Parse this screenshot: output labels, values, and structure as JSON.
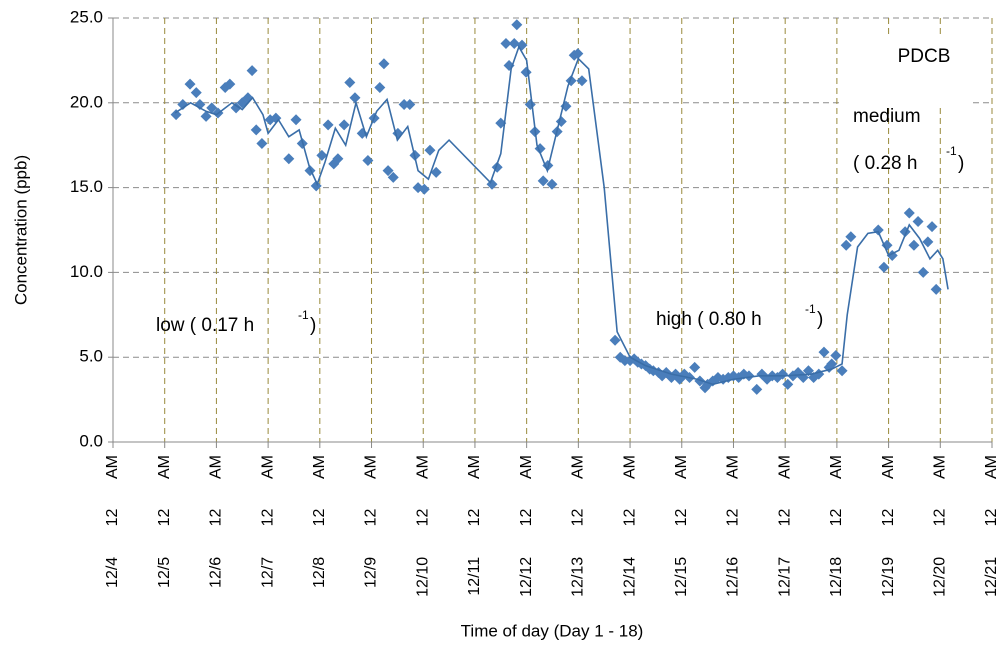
{
  "chart_data": {
    "type": "scatter",
    "ylabel": "Concentration (ppb)",
    "xlabel": "Time of day (Day 1 - 18)",
    "annotations": [
      "PDCB",
      "medium",
      "( 0.28 h",
      "-1",
      ")",
      "low ( 0.17 h",
      "-1",
      ")",
      "high ( 0.80 h",
      "-1",
      ")"
    ],
    "xlim": [
      4,
      21
    ],
    "xticks": [
      {
        "value": 4,
        "label": "12/4 12 AM"
      },
      {
        "value": 5,
        "label": "12/5 12 AM"
      },
      {
        "value": 6,
        "label": "12/6 12 AM"
      },
      {
        "value": 7,
        "label": "12/7 12 AM"
      },
      {
        "value": 8,
        "label": "12/8 12 AM"
      },
      {
        "value": 9,
        "label": "12/9 12 AM"
      },
      {
        "value": 10,
        "label": "12/10 12 AM"
      },
      {
        "value": 11,
        "label": "12/11 12 AM"
      },
      {
        "value": 12,
        "label": "12/12 12 AM"
      },
      {
        "value": 13,
        "label": "12/13 12 AM"
      },
      {
        "value": 14,
        "label": "12/14 12 AM"
      },
      {
        "value": 15,
        "label": "12/15 12 AM"
      },
      {
        "value": 16,
        "label": "12/16 12 AM"
      },
      {
        "value": 17,
        "label": "12/17 12 AM"
      },
      {
        "value": 18,
        "label": "12/18 12 AM"
      },
      {
        "value": 19,
        "label": "12/19 12 AM"
      },
      {
        "value": 20,
        "label": "12/20 12 AM"
      },
      {
        "value": 21,
        "label": "12/21 12 AM"
      }
    ],
    "ylim": [
      0,
      25
    ],
    "yticks": [
      {
        "value": 0,
        "label": "0.0"
      },
      {
        "value": 5,
        "label": "5.0"
      },
      {
        "value": 10,
        "label": "10.0"
      },
      {
        "value": 15,
        "label": "15.0"
      },
      {
        "value": 20,
        "label": "20.0"
      },
      {
        "value": 25,
        "label": "25.0"
      }
    ],
    "grid": true,
    "series": [
      {
        "type": "scatter",
        "color": "#4a7ebb",
        "x": [
          5.22,
          5.35,
          5.49,
          5.61,
          5.68,
          5.8,
          5.91,
          6.03,
          6.17,
          6.26,
          6.38,
          6.5,
          6.61,
          6.69,
          6.77,
          6.88,
          7.04,
          7.15,
          7.4,
          7.54,
          7.66,
          7.81,
          7.93,
          8.04,
          8.16,
          8.27,
          8.35,
          8.47,
          8.58,
          8.68,
          8.82,
          8.93,
          9.05,
          9.16,
          9.24,
          9.32,
          9.42,
          9.51,
          9.63,
          9.74,
          9.84,
          9.9,
          10.02,
          10.13,
          10.25,
          11.33,
          11.43,
          11.5,
          11.6,
          11.66,
          11.76,
          11.81,
          11.91,
          11.99,
          12.07,
          12.16,
          12.26,
          12.32,
          12.41,
          12.49,
          12.59,
          12.67,
          12.76,
          12.86,
          12.92,
          12.99,
          13.07,
          13.71,
          13.81,
          13.9,
          14.0,
          14.08,
          14.15,
          14.22,
          14.3,
          14.38,
          14.45,
          14.55,
          14.62,
          14.7,
          14.8,
          14.88,
          14.96,
          15.05,
          15.15,
          15.25,
          15.35,
          15.45,
          15.5,
          15.6,
          15.7,
          15.8,
          15.9,
          16.0,
          16.1,
          16.2,
          16.3,
          16.45,
          16.55,
          16.65,
          16.75,
          16.85,
          16.95,
          17.05,
          17.15,
          17.25,
          17.35,
          17.45,
          17.55,
          17.65,
          17.75,
          17.85,
          17.9,
          17.98,
          18.1,
          18.18,
          18.27,
          18.8,
          18.91,
          18.97,
          19.07,
          19.32,
          19.4,
          19.49,
          19.57,
          19.67,
          19.76,
          19.84,
          19.92
        ],
        "values": [
          19.3,
          19.9,
          21.1,
          20.6,
          19.9,
          19.2,
          19.7,
          19.4,
          20.9,
          21.1,
          19.7,
          20.0,
          20.3,
          21.9,
          18.4,
          17.6,
          19.0,
          19.1,
          16.7,
          19.0,
          17.6,
          16.0,
          15.1,
          16.9,
          18.7,
          16.4,
          16.7,
          18.7,
          21.2,
          20.3,
          18.2,
          16.6,
          19.1,
          20.9,
          22.3,
          16.0,
          15.6,
          18.2,
          19.9,
          19.9,
          16.9,
          15.0,
          14.9,
          17.2,
          15.9,
          15.2,
          16.2,
          18.8,
          23.5,
          22.2,
          23.5,
          24.6,
          23.4,
          21.8,
          19.9,
          18.3,
          17.3,
          15.4,
          16.3,
          15.2,
          18.3,
          18.9,
          19.8,
          21.3,
          22.8,
          22.9,
          21.3,
          6.0,
          5.0,
          4.8,
          4.8,
          4.9,
          4.7,
          4.6,
          4.5,
          4.3,
          4.2,
          4.1,
          3.9,
          4.1,
          3.8,
          4.0,
          3.7,
          4.0,
          3.8,
          4.4,
          3.6,
          3.2,
          3.4,
          3.6,
          3.8,
          3.7,
          3.8,
          3.9,
          3.8,
          4.0,
          3.9,
          3.1,
          4.0,
          3.7,
          3.9,
          3.8,
          4.0,
          3.4,
          3.9,
          4.1,
          3.8,
          4.2,
          3.8,
          4.0,
          5.3,
          4.4,
          4.6,
          5.1,
          4.2,
          11.6,
          12.1,
          12.5,
          10.3,
          11.6,
          11.0,
          12.4,
          13.5,
          11.6,
          13.0,
          10.0,
          11.8,
          12.7,
          9.0
        ]
      },
      {
        "type": "line",
        "color": "#3a6ea8",
        "x": [
          5.2,
          5.5,
          5.8,
          6.0,
          6.3,
          6.5,
          6.7,
          6.9,
          7.0,
          7.2,
          7.4,
          7.6,
          7.8,
          7.95,
          8.1,
          8.3,
          8.5,
          8.7,
          8.9,
          9.1,
          9.3,
          9.5,
          9.7,
          9.9,
          10.1,
          10.3,
          10.5,
          11.3,
          11.5,
          11.7,
          11.85,
          12.0,
          12.2,
          12.4,
          12.6,
          12.8,
          13.0,
          13.2,
          13.5,
          13.75,
          14.0,
          14.3,
          14.8,
          15.3,
          15.6,
          16.0,
          16.5,
          17.0,
          17.5,
          17.9,
          18.1,
          18.2,
          18.4,
          18.6,
          18.8,
          19.0,
          19.2,
          19.4,
          19.6,
          19.8,
          19.95,
          20.05,
          20.15
        ],
        "values": [
          19.4,
          20.0,
          19.5,
          19.3,
          20.0,
          19.6,
          20.3,
          19.3,
          18.2,
          19.0,
          18.0,
          18.4,
          16.2,
          15.2,
          16.5,
          18.5,
          17.5,
          20.0,
          18.0,
          19.5,
          20.2,
          17.8,
          18.6,
          16.0,
          15.5,
          17.2,
          17.8,
          15.3,
          17.0,
          22.0,
          23.3,
          22.5,
          17.5,
          16.0,
          18.5,
          21.0,
          22.6,
          22.0,
          15.0,
          6.5,
          5.0,
          4.5,
          4.0,
          3.7,
          3.4,
          3.7,
          3.9,
          3.9,
          4.0,
          4.3,
          4.6,
          7.5,
          11.5,
          12.3,
          12.4,
          11.0,
          11.3,
          12.8,
          12.0,
          10.8,
          11.3,
          10.8,
          9.0
        ]
      }
    ]
  }
}
